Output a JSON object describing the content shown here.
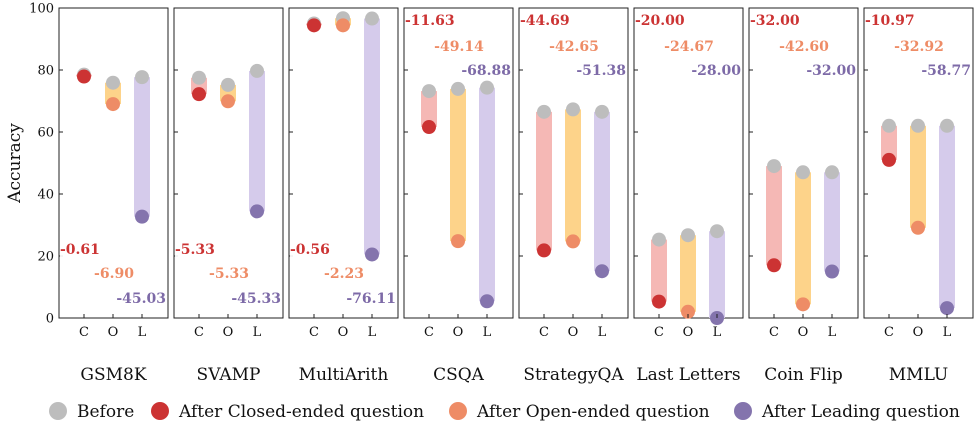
{
  "chart_data": {
    "type": "dot-range",
    "ylabel": "Accuracy",
    "ylim": [
      0,
      100
    ],
    "yticks": [
      0,
      20,
      40,
      60,
      80,
      100
    ],
    "conditions": [
      "C",
      "O",
      "L"
    ],
    "legend": [
      {
        "name": "Before",
        "color": "#bdbdbd"
      },
      {
        "name": "After Closed-ended question",
        "color": "#cc3333"
      },
      {
        "name": "After Open-ended question",
        "color": "#ee8c66"
      },
      {
        "name": "After Leading question",
        "color": "#8474ad"
      }
    ],
    "range_colors": {
      "C": "#f5b8b5",
      "O": "#fdd38a",
      "L": "#d5cbeb"
    },
    "label_colors": {
      "C": "#cc3333",
      "O": "#ee8c66",
      "L": "#7d6aa7"
    },
    "datasets": [
      {
        "name": "GSM8K",
        "labels_top": false,
        "before": [
          78.5,
          75.9,
          77.7
        ],
        "after": [
          77.9,
          69.0,
          32.7
        ],
        "labels": [
          "-0.61",
          "-6.90",
          "-45.03"
        ]
      },
      {
        "name": "SVAMP",
        "labels_top": false,
        "before": [
          77.5,
          75.2,
          79.7
        ],
        "after": [
          72.2,
          69.9,
          34.4
        ],
        "labels": [
          "-5.33",
          "-5.33",
          "-45.33"
        ]
      },
      {
        "name": "MultiArith",
        "labels_top": false,
        "before": [
          95.0,
          96.7,
          96.6
        ],
        "after": [
          94.4,
          94.4,
          20.5
        ],
        "labels": [
          "-0.56",
          "-2.23",
          "-76.11"
        ]
      },
      {
        "name": "CSQA",
        "labels_top": true,
        "before": [
          73.2,
          73.9,
          74.3
        ],
        "after": [
          61.6,
          24.8,
          5.4
        ],
        "labels": [
          "-11.63",
          "-49.14",
          "-68.88"
        ]
      },
      {
        "name": "StrategyQA",
        "labels_top": true,
        "before": [
          66.5,
          67.3,
          66.5
        ],
        "after": [
          21.8,
          24.7,
          15.1
        ],
        "labels": [
          "-44.69",
          "-42.65",
          "-51.38"
        ]
      },
      {
        "name": "Last Letters",
        "labels_top": true,
        "before": [
          25.3,
          26.7,
          28.0
        ],
        "after": [
          5.3,
          2.0,
          0.0
        ],
        "labels": [
          "-20.00",
          "-24.67",
          "-28.00"
        ]
      },
      {
        "name": "Coin Flip",
        "labels_top": true,
        "before": [
          49.0,
          47.0,
          47.0
        ],
        "after": [
          17.0,
          4.4,
          15.0
        ],
        "labels": [
          "-32.00",
          "-42.60",
          "-32.00"
        ]
      },
      {
        "name": "MMLU",
        "labels_top": true,
        "before": [
          62.0,
          62.0,
          62.0
        ],
        "after": [
          51.0,
          29.1,
          3.2
        ],
        "labels": [
          "-10.97",
          "-32.92",
          "-58.77"
        ]
      }
    ]
  }
}
